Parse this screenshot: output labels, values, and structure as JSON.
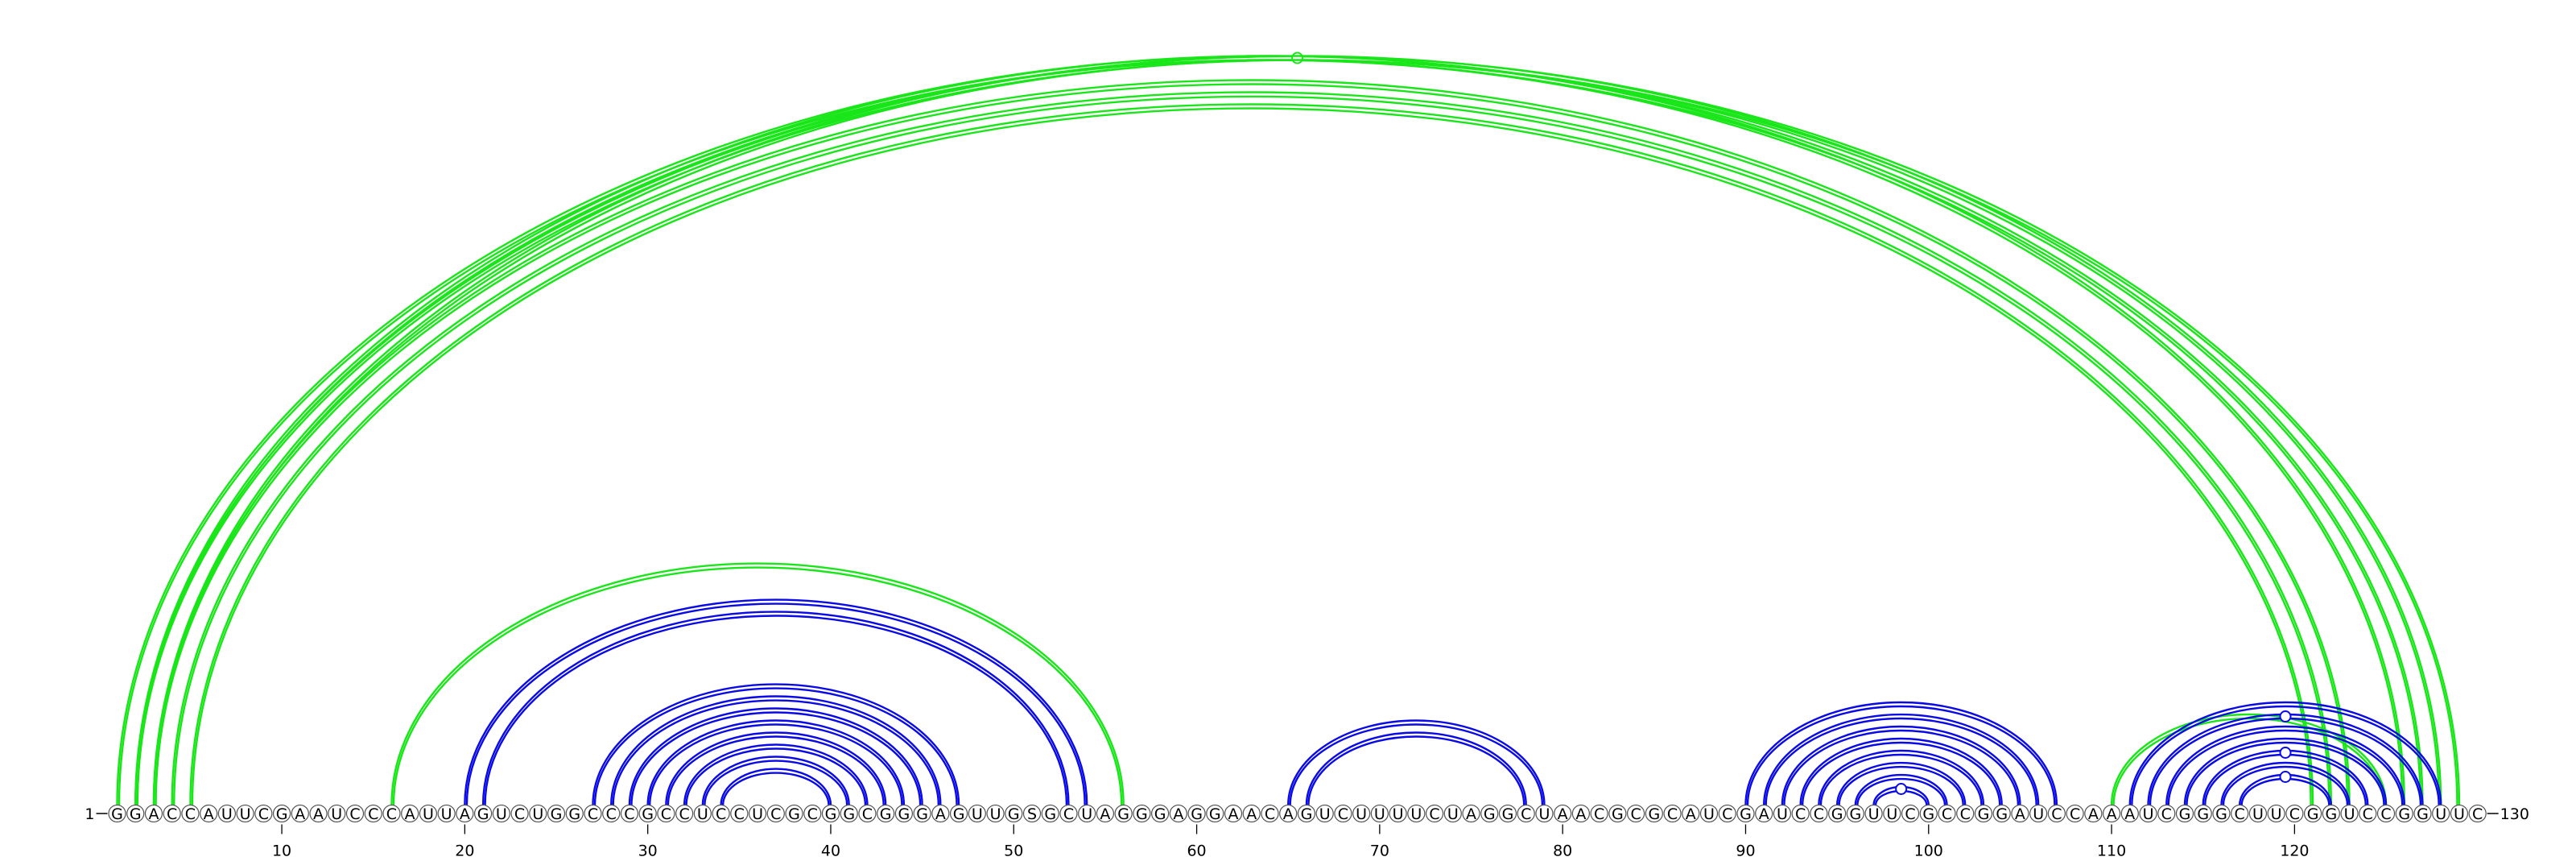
{
  "diagram": {
    "type": "rna-arc-diagram",
    "sequence": "GGACCAUUCGAAUCCCAUUAGUCUGGCCCGCCUCCUCGCGGCGGGAGUUGSGCUAGGGAGGAACAGUCUUUUCUAGGCUAACGCGCAUCGAUCCGGUUCGCCGGAUCCAAAUCGGGCUUCGGUCCGGUUC",
    "start_label": "1",
    "end_label": "130",
    "tick_labels": [
      "10",
      "20",
      "30",
      "40",
      "50",
      "60",
      "70",
      "80",
      "90",
      "100",
      "110",
      "120"
    ],
    "colors": {
      "secondary": "#0a0ae6",
      "tertiary": "#19e619",
      "nucleotide_fill": "#ffffff",
      "nucleotide_stroke": "#555555"
    },
    "arcs": [
      {
        "i": 1,
        "j": 127,
        "color": "tertiary"
      },
      {
        "i": 2,
        "j": 126,
        "color": "tertiary"
      },
      {
        "i": 3,
        "j": 123,
        "color": "tertiary"
      },
      {
        "i": 4,
        "j": 122,
        "color": "tertiary"
      },
      {
        "i": 5,
        "j": 121,
        "color": "tertiary"
      },
      {
        "i": 2,
        "j": 129,
        "color": "tertiary",
        "marker": true
      },
      {
        "i": 3,
        "j": 128,
        "color": "tertiary"
      },
      {
        "i": 16,
        "j": 56,
        "color": "tertiary"
      },
      {
        "i": 110,
        "j": 125,
        "color": "tertiary"
      },
      {
        "i": 20,
        "j": 54,
        "color": "secondary"
      },
      {
        "i": 21,
        "j": 53,
        "color": "secondary"
      },
      {
        "i": 27,
        "j": 47,
        "color": "secondary"
      },
      {
        "i": 28,
        "j": 46,
        "color": "secondary"
      },
      {
        "i": 29,
        "j": 45,
        "color": "secondary"
      },
      {
        "i": 30,
        "j": 44,
        "color": "secondary"
      },
      {
        "i": 31,
        "j": 43,
        "color": "secondary"
      },
      {
        "i": 32,
        "j": 42,
        "color": "secondary"
      },
      {
        "i": 33,
        "j": 41,
        "color": "secondary"
      },
      {
        "i": 34,
        "j": 40,
        "color": "secondary"
      },
      {
        "i": 65,
        "j": 79,
        "color": "secondary"
      },
      {
        "i": 66,
        "j": 78,
        "color": "secondary"
      },
      {
        "i": 90,
        "j": 107,
        "color": "secondary"
      },
      {
        "i": 91,
        "j": 106,
        "color": "secondary"
      },
      {
        "i": 92,
        "j": 105,
        "color": "secondary"
      },
      {
        "i": 93,
        "j": 104,
        "color": "secondary"
      },
      {
        "i": 94,
        "j": 103,
        "color": "secondary"
      },
      {
        "i": 95,
        "j": 102,
        "color": "secondary"
      },
      {
        "i": 96,
        "j": 101,
        "color": "secondary"
      },
      {
        "i": 97,
        "j": 100,
        "color": "secondary",
        "marker": true
      },
      {
        "i": 111,
        "j": 128,
        "color": "secondary"
      },
      {
        "i": 112,
        "j": 127,
        "color": "secondary",
        "marker": true
      },
      {
        "i": 113,
        "j": 126,
        "color": "secondary"
      },
      {
        "i": 114,
        "j": 125,
        "color": "secondary"
      },
      {
        "i": 115,
        "j": 124,
        "color": "secondary",
        "marker": true
      },
      {
        "i": 116,
        "j": 123,
        "color": "secondary"
      },
      {
        "i": 117,
        "j": 122,
        "color": "secondary",
        "marker": true
      }
    ]
  }
}
